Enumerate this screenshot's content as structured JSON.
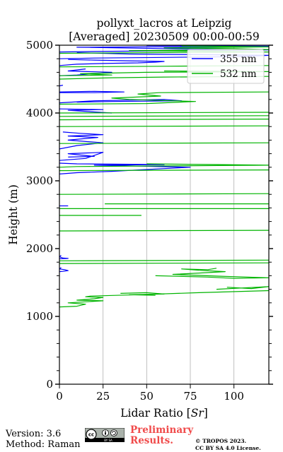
{
  "chart_data": {
    "type": "line",
    "title_lines": [
      "pollyxt_lacros at Leipzig",
      "[Averaged] 20230509 00:00-00:59"
    ],
    "xlabel": "Lidar Ratio [",
    "xlabel_unit": "Sr",
    "xlabel_close": "]",
    "ylabel": "Height (m)",
    "xlim": [
      0,
      120
    ],
    "ylim": [
      0,
      5000
    ],
    "xticks": [
      0,
      25,
      50,
      75,
      100
    ],
    "xtick_labels": [
      "0",
      "25",
      "50",
      "75",
      "100"
    ],
    "yticks": [
      0,
      1000,
      2000,
      3000,
      4000,
      5000
    ],
    "ytick_labels": [
      "0",
      "1000",
      "2000",
      "3000",
      "4000",
      "5000"
    ],
    "grid": true,
    "legend_position": "top-right",
    "series": [
      {
        "name": "355 nm",
        "color": "#0000ff",
        "segments": [
          [
            [
              0,
              1660
            ],
            [
              2,
              1665
            ],
            [
              5,
              1675
            ],
            [
              3,
              1690
            ],
            [
              0,
              1700
            ],
            [
              1,
              1720
            ]
          ],
          [
            [
              0,
              1850
            ],
            [
              5,
              1855
            ],
            [
              2,
              1860
            ],
            [
              0,
              1880
            ],
            [
              1,
              1900
            ]
          ],
          [
            [
              0,
              2630
            ],
            [
              5,
              2630
            ]
          ],
          [
            [
              0,
              3100
            ],
            [
              10,
              3120
            ],
            [
              30,
              3140
            ],
            [
              60,
              3180
            ],
            [
              75,
              3200
            ],
            [
              55,
              3210
            ],
            [
              40,
              3220
            ],
            [
              20,
              3230
            ],
            [
              60,
              3240
            ],
            [
              10,
              3250
            ],
            [
              0,
              3260
            ]
          ],
          [
            [
              0,
              3300
            ],
            [
              15,
              3330
            ],
            [
              25,
              3420
            ],
            [
              5,
              3400
            ],
            [
              12,
              3380
            ],
            [
              20,
              3360
            ],
            [
              5,
              3350
            ]
          ],
          [
            [
              0,
              3470
            ],
            [
              10,
              3520
            ],
            [
              25,
              3560
            ],
            [
              5,
              3600
            ],
            [
              22,
              3640
            ],
            [
              5,
              3660
            ],
            [
              25,
              3680
            ],
            [
              12,
              3700
            ],
            [
              2,
              3720
            ]
          ],
          [
            [
              0,
              4060
            ],
            [
              25,
              4050
            ],
            [
              5,
              4040
            ],
            [
              30,
              4000
            ]
          ],
          [
            [
              0,
              4150
            ],
            [
              20,
              4180
            ],
            [
              60,
              4200
            ],
            [
              70,
              4180
            ],
            [
              30,
              4170
            ],
            [
              10,
              4160
            ]
          ],
          [
            [
              0,
              4300
            ],
            [
              20,
              4300
            ],
            [
              37,
              4310
            ],
            [
              20,
              4320
            ],
            [
              0,
              4310
            ]
          ],
          [
            [
              0,
              4400
            ],
            [
              2,
              4410
            ]
          ],
          [
            [
              0,
              4550
            ],
            [
              10,
              4560
            ],
            [
              20,
              4580
            ],
            [
              30,
              4600
            ],
            [
              5,
              4620
            ],
            [
              15,
              4650
            ]
          ],
          [
            [
              0,
              4700
            ],
            [
              10,
              4720
            ],
            [
              25,
              4730
            ],
            [
              45,
              4740
            ],
            [
              55,
              4750
            ],
            [
              60,
              4760
            ],
            [
              40,
              4770
            ],
            [
              20,
              4780
            ],
            [
              5,
              4790
            ]
          ],
          [
            [
              0,
              4800
            ],
            [
              20,
              4810
            ],
            [
              60,
              4820
            ],
            [
              100,
              4830
            ],
            [
              120,
              4850
            ],
            [
              80,
              4860
            ],
            [
              40,
              4870
            ],
            [
              10,
              4890
            ]
          ],
          [
            [
              0,
              4900
            ],
            [
              30,
              4910
            ],
            [
              80,
              4920
            ],
            [
              120,
              4930
            ],
            [
              60,
              4950
            ],
            [
              10,
              4970
            ],
            [
              120,
              4985
            ],
            [
              50,
              4995
            ]
          ]
        ]
      },
      {
        "name": "532 nm",
        "color": "#00b400",
        "segments": [
          [
            [
              0,
              1140
            ],
            [
              10,
              1150
            ],
            [
              15,
              1180
            ],
            [
              5,
              1200
            ],
            [
              18,
              1220
            ],
            [
              25,
              1230
            ],
            [
              10,
              1240
            ],
            [
              20,
              1260
            ],
            [
              25,
              1280
            ],
            [
              15,
              1290
            ],
            [
              18,
              1300
            ],
            [
              45,
              1320
            ],
            [
              80,
              1350
            ],
            [
              120,
              1380
            ]
          ],
          [
            [
              35,
              1340
            ],
            [
              50,
              1350
            ],
            [
              60,
              1330
            ],
            [
              40,
              1320
            ],
            [
              55,
              1310
            ]
          ],
          [
            [
              90,
              1400
            ],
            [
              105,
              1420
            ],
            [
              120,
              1440
            ],
            [
              110,
              1410
            ],
            [
              96,
              1430
            ]
          ],
          [
            [
              55,
              1600
            ],
            [
              85,
              1580
            ],
            [
              100,
              1560
            ],
            [
              120,
              1570
            ],
            [
              95,
              1590
            ],
            [
              65,
              1620
            ],
            [
              80,
              1640
            ],
            [
              95,
              1660
            ],
            [
              80,
              1680
            ],
            [
              70,
              1700
            ],
            [
              85,
              1690
            ],
            [
              90,
              1710
            ]
          ],
          [
            [
              0,
              1780
            ],
            [
              120,
              1790
            ]
          ],
          [
            [
              0,
              1820
            ],
            [
              120,
              1830
            ]
          ],
          [
            [
              0,
              2260
            ],
            [
              120,
              2270
            ]
          ],
          [
            [
              0,
              2490
            ],
            [
              47,
              2490
            ]
          ],
          [
            [
              0,
              2590
            ],
            [
              120,
              2590
            ]
          ],
          [
            [
              26,
              2660
            ],
            [
              120,
              2660
            ]
          ],
          [
            [
              0,
              2800
            ],
            [
              120,
              2810
            ]
          ],
          [
            [
              0,
              3150
            ],
            [
              120,
              3160
            ]
          ],
          [
            [
              0,
              3200
            ],
            [
              10,
              3210
            ],
            [
              60,
              3220
            ],
            [
              120,
              3230
            ],
            [
              90,
              3240
            ],
            [
              50,
              3250
            ]
          ],
          [
            [
              0,
              3550
            ],
            [
              120,
              3560
            ]
          ],
          [
            [
              0,
              3800
            ],
            [
              120,
              3810
            ]
          ],
          [
            [
              0,
              3900
            ],
            [
              120,
              3910
            ]
          ],
          [
            [
              0,
              3950
            ],
            [
              120,
              3960
            ]
          ],
          [
            [
              0,
              4000
            ],
            [
              120,
              4010
            ]
          ],
          [
            [
              0,
              4130
            ],
            [
              50,
              4140
            ],
            [
              78,
              4170
            ],
            [
              40,
              4200
            ],
            [
              30,
              4220
            ],
            [
              58,
              4250
            ],
            [
              45,
              4280
            ],
            [
              57,
              4300
            ],
            [
              120,
              4310
            ]
          ],
          [
            [
              0,
              4500
            ],
            [
              30,
              4520
            ],
            [
              60,
              4530
            ],
            [
              120,
              4540
            ]
          ],
          [
            [
              0,
              4550
            ],
            [
              30,
              4560
            ],
            [
              12,
              4580
            ],
            [
              50,
              4600
            ],
            [
              120,
              4610
            ],
            [
              60,
              4620
            ]
          ],
          [
            [
              0,
              4680
            ],
            [
              60,
              4690
            ],
            [
              120,
              4700
            ]
          ],
          [
            [
              0,
              4880
            ],
            [
              50,
              4890
            ],
            [
              120,
              4900
            ],
            [
              80,
              4910
            ],
            [
              40,
              4920
            ],
            [
              120,
              4935
            ],
            [
              100,
              4950
            ],
            [
              60,
              4960
            ],
            [
              120,
              4975
            ],
            [
              70,
              4990
            ]
          ]
        ]
      }
    ]
  },
  "footer": {
    "version": "Version: 3.6",
    "method": "Method: Raman",
    "cc_label": "cc",
    "cc_sub": "BY SA",
    "preliminary_line1": "Preliminary",
    "preliminary_line2": "Results.",
    "copyright_line1": "© TROPOS 2023.",
    "copyright_line2": "CC BY SA 4.0 License."
  }
}
